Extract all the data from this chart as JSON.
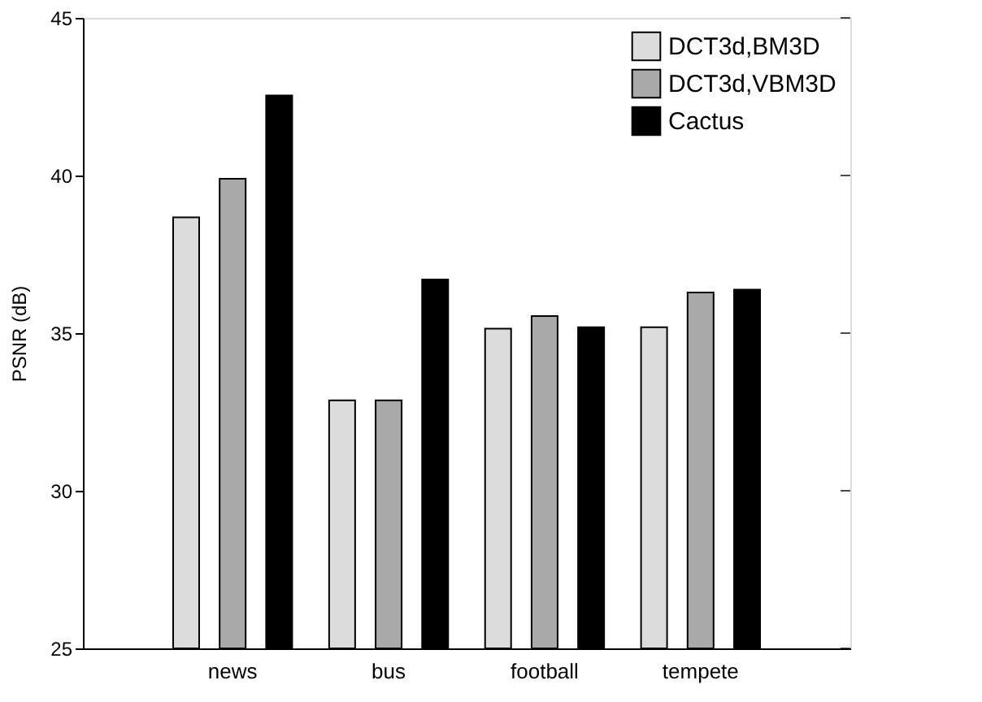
{
  "chart_data": {
    "type": "bar",
    "ylabel": "PSNR (dB)",
    "categories": [
      "news",
      "bus",
      "football",
      "tempete"
    ],
    "series": [
      {
        "name": "DCT3d,BM3D",
        "color": "#dcdcdc",
        "values": [
          38.67,
          32.87,
          35.14,
          35.19
        ]
      },
      {
        "name": "DCT3d,VBM3D",
        "color": "#a9a9a9",
        "values": [
          39.9,
          32.87,
          35.54,
          36.29
        ]
      },
      {
        "name": "Cactus",
        "color": "#000000",
        "values": [
          42.54,
          36.7,
          35.19,
          36.38
        ]
      }
    ],
    "ylim": [
      25,
      45
    ],
    "yticks": [
      25,
      30,
      35,
      40,
      45
    ],
    "grid": false,
    "legend": "top right"
  }
}
